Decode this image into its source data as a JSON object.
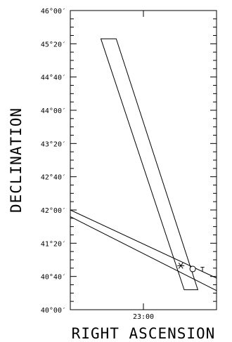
{
  "chart_data": {
    "type": "line",
    "xlabel": "RIGHT ASCENSION",
    "ylabel": "DECLINATION",
    "y_unit": "arcmin",
    "ylim": [
      2400,
      2760
    ],
    "y_ticks": [
      {
        "value": 2400,
        "label": "40°00′"
      },
      {
        "value": 2440,
        "label": "40°40′"
      },
      {
        "value": 2480,
        "label": "41°20′"
      },
      {
        "value": 2520,
        "label": "42°00′"
      },
      {
        "value": 2560,
        "label": "42°40′"
      },
      {
        "value": 2600,
        "label": "43°20′"
      },
      {
        "value": 2640,
        "label": "44°00′"
      },
      {
        "value": 2680,
        "label": "44°40′"
      },
      {
        "value": 2720,
        "label": "45°20′"
      },
      {
        "value": 2760,
        "label": "46°00′"
      }
    ],
    "x_unit": "minutes of RA relative to 23:00",
    "xlim": [
      -4.3,
      4.3
    ],
    "x_ticks": [
      {
        "value": 0,
        "label": "23:00"
      }
    ],
    "minor_tick_step_y": 10,
    "series": [
      {
        "kind": "band",
        "points": [
          [
            -2.5,
            2726
          ],
          [
            -1.6,
            2726
          ],
          [
            3.2,
            2424
          ],
          [
            2.4,
            2424
          ]
        ]
      },
      {
        "kind": "band",
        "points": [
          [
            -4.3,
            2520
          ],
          [
            4.3,
            2438
          ],
          [
            4.3,
            2423
          ],
          [
            -4.3,
            2512
          ]
        ]
      }
    ],
    "markers": [
      {
        "shape": "asterisk",
        "x": 2.2,
        "y": 2453
      },
      {
        "shape": "circle",
        "x": 2.9,
        "y": 2449
      },
      {
        "shape": "text",
        "x": 3.35,
        "y": 2449,
        "label": "T"
      }
    ]
  }
}
